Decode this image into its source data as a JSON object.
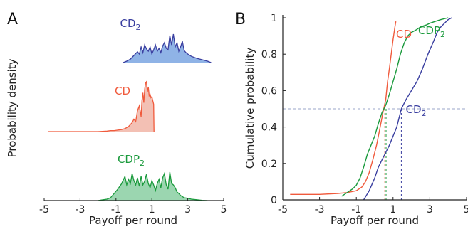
{
  "chart_data": [
    {
      "panel": "A",
      "type": "area",
      "xlabel": "Payoff per round",
      "ylabel": "Probability density",
      "xlim": [
        -5,
        5
      ],
      "xticks": [
        "-5",
        "-3",
        "-1",
        "1",
        "3",
        "5"
      ],
      "grid": false,
      "series": [
        {
          "name": "CD₂",
          "name_base": "CD",
          "name_sub": "2",
          "color": "#3a3fa0",
          "fill": "#8fb3e6",
          "x": [
            -0.6,
            -0.4,
            -0.2,
            0.0,
            0.2,
            0.3,
            0.4,
            0.5,
            0.6,
            0.7,
            0.8,
            0.9,
            1.0,
            1.1,
            1.2,
            1.3,
            1.4,
            1.5,
            1.6,
            1.7,
            1.8,
            1.9,
            2.0,
            2.1,
            2.2,
            2.3,
            2.4,
            2.5,
            2.6,
            2.7,
            2.8,
            2.9,
            3.0,
            3.2,
            3.5,
            3.8,
            4.1,
            4.3
          ],
          "y": [
            0,
            0.05,
            0.12,
            0.25,
            0.38,
            0.3,
            0.55,
            0.35,
            0.62,
            0.48,
            0.4,
            0.55,
            0.3,
            0.45,
            0.62,
            0.4,
            0.5,
            0.35,
            0.58,
            0.7,
            0.5,
            0.45,
            0.95,
            0.62,
            1.0,
            0.55,
            0.7,
            0.4,
            0.55,
            0.75,
            0.42,
            0.35,
            0.3,
            0.22,
            0.15,
            0.1,
            0.05,
            0
          ]
        },
        {
          "name": "CD",
          "name_base": "CD",
          "name_sub": "",
          "color": "#f05a3c",
          "fill": "#f3c0b4",
          "x": [
            -4.8,
            -2.0,
            -1.5,
            -1.3,
            -1.1,
            -0.9,
            -0.7,
            -0.5,
            -0.3,
            -0.1,
            0.0,
            0.1,
            0.2,
            0.3,
            0.4,
            0.45,
            0.5,
            0.55,
            0.6,
            0.65,
            0.7,
            0.75,
            0.8,
            0.85,
            0.9,
            0.95,
            1.0,
            1.05,
            1.1,
            1.12
          ],
          "y": [
            0,
            0,
            0.01,
            0.02,
            0.02,
            0.03,
            0.04,
            0.06,
            0.1,
            0.18,
            0.25,
            0.2,
            0.42,
            0.52,
            0.3,
            0.62,
            0.78,
            0.58,
            0.85,
            0.98,
            1.0,
            0.8,
            0.9,
            0.72,
            0.75,
            0.68,
            0.7,
            0.62,
            0.55,
            0
          ]
        },
        {
          "name": "CDP₂",
          "name_base": "CDP",
          "name_sub": "2",
          "color": "#1a9a3c",
          "fill": "#9bd6b0",
          "x": [
            -2.0,
            -1.8,
            -1.5,
            -1.3,
            -1.1,
            -0.9,
            -0.7,
            -0.5,
            -0.4,
            -0.3,
            -0.2,
            -0.1,
            0.0,
            0.1,
            0.2,
            0.3,
            0.4,
            0.5,
            0.6,
            0.7,
            0.8,
            0.9,
            1.0,
            1.1,
            1.2,
            1.3,
            1.4,
            1.5,
            1.6,
            1.7,
            1.8,
            1.9,
            2.0,
            2.1,
            2.2,
            2.3,
            2.4,
            2.5,
            2.6,
            2.8,
            3.0,
            3.2,
            3.5,
            3.8,
            4.1
          ],
          "y": [
            0,
            0.02,
            0.05,
            0.1,
            0.25,
            0.4,
            0.58,
            0.85,
            0.55,
            0.75,
            0.6,
            0.95,
            0.7,
            0.55,
            0.8,
            0.5,
            0.85,
            0.55,
            0.68,
            0.92,
            0.6,
            0.45,
            0.7,
            0.55,
            0.35,
            0.6,
            0.75,
            0.45,
            0.8,
            0.95,
            0.55,
            0.4,
            1.0,
            0.6,
            0.55,
            0.45,
            0.3,
            0.25,
            0.18,
            0.1,
            0.08,
            0.05,
            0.03,
            0.01,
            0
          ]
        }
      ],
      "title": ""
    },
    {
      "panel": "B",
      "type": "line",
      "xlabel": "Payoff per round",
      "ylabel": "Cumulative probability",
      "xlim": [
        -5,
        5
      ],
      "ylim": [
        0,
        1
      ],
      "xticks": [
        "-5",
        "-3",
        "-1",
        "1",
        "3",
        "5"
      ],
      "yticks": [
        "0",
        "0.2",
        "0.4",
        "0.6",
        "0.8",
        "1"
      ],
      "grid": false,
      "reference_y": 0.5,
      "series": [
        {
          "name": "CD",
          "name_base": "CD",
          "name_sub": "",
          "color": "#f05a3c",
          "median": 0.55,
          "x": [
            -4.6,
            -3.0,
            -2.0,
            -1.5,
            -1.0,
            -0.7,
            -0.5,
            -0.3,
            -0.1,
            0.1,
            0.3,
            0.45,
            0.6,
            0.7,
            0.8,
            0.9,
            1.0,
            1.1,
            1.15
          ],
          "y": [
            0.03,
            0.03,
            0.035,
            0.04,
            0.05,
            0.07,
            0.1,
            0.15,
            0.22,
            0.3,
            0.4,
            0.48,
            0.55,
            0.65,
            0.72,
            0.8,
            0.88,
            0.95,
            0.98
          ]
        },
        {
          "name": "CDP₂",
          "name_base": "CDP",
          "name_sub": "2",
          "color": "#1a9a3c",
          "median": 0.62,
          "x": [
            -1.8,
            -1.5,
            -1.2,
            -1.0,
            -0.8,
            -0.6,
            -0.4,
            -0.2,
            0.0,
            0.2,
            0.4,
            0.6,
            0.8,
            1.0,
            1.2,
            1.4,
            1.6,
            1.8,
            2.0,
            2.2,
            2.5,
            2.8,
            3.0,
            3.3,
            3.6,
            4.0
          ],
          "y": [
            0.02,
            0.04,
            0.06,
            0.08,
            0.12,
            0.18,
            0.25,
            0.3,
            0.35,
            0.42,
            0.48,
            0.52,
            0.58,
            0.65,
            0.72,
            0.8,
            0.86,
            0.9,
            0.92,
            0.93,
            0.95,
            0.96,
            0.97,
            0.98,
            0.99,
            1.0
          ]
        },
        {
          "name": "CD₂",
          "name_base": "CD",
          "name_sub": "2",
          "color": "#3a3fa0",
          "median": 1.45,
          "x": [
            -0.6,
            -0.3,
            0.0,
            0.2,
            0.4,
            0.6,
            0.8,
            1.0,
            1.2,
            1.45,
            1.7,
            2.0,
            2.3,
            2.6,
            2.9,
            3.2,
            3.4,
            3.6,
            3.8,
            4.0,
            4.2
          ],
          "y": [
            0.0,
            0.05,
            0.12,
            0.18,
            0.22,
            0.26,
            0.3,
            0.35,
            0.4,
            0.5,
            0.55,
            0.6,
            0.65,
            0.72,
            0.8,
            0.87,
            0.92,
            0.95,
            0.97,
            0.99,
            1.0
          ]
        }
      ],
      "title": ""
    }
  ]
}
